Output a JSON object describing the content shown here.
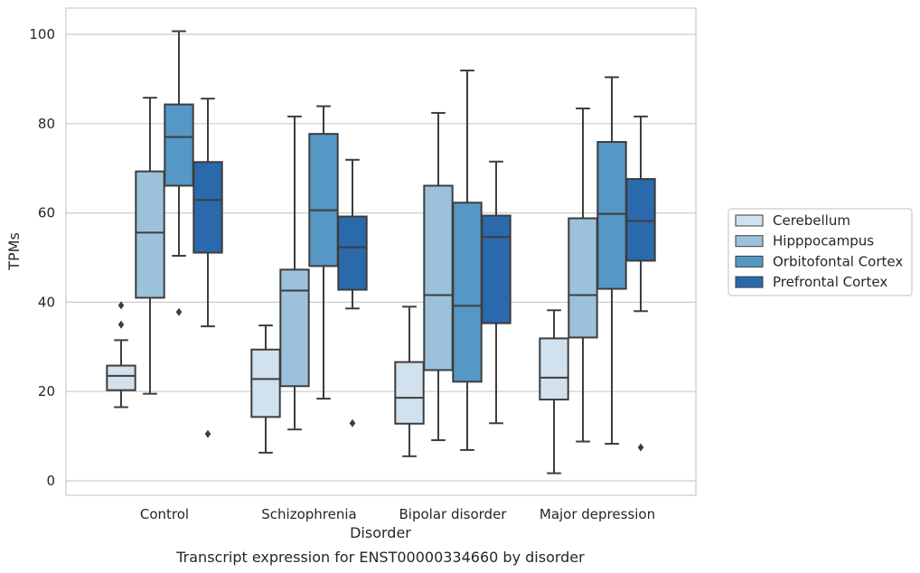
{
  "chart_data": {
    "type": "box",
    "title": "",
    "caption": "Transcript expression for ENST00000334660 by disorder",
    "xlabel": "Disorder",
    "ylabel": "TPMs",
    "ylim": [
      -3,
      106
    ],
    "yticks": [
      0,
      20,
      40,
      60,
      80,
      100
    ],
    "grid": "horizontal",
    "legend_position": "right",
    "categories": [
      "Control",
      "Schizophrenia",
      "Bipolar disorder",
      "Major depression"
    ],
    "series": [
      {
        "name": "Cerebellum",
        "color": "#d1e1ee",
        "boxes": [
          {
            "whisker_low": 16.5,
            "q1": 20.3,
            "median": 23.5,
            "q3": 25.8,
            "whisker_high": 31.5,
            "outliers": [
              35.0,
              39.3
            ]
          },
          {
            "whisker_low": 6.3,
            "q1": 14.3,
            "median": 22.8,
            "q3": 29.4,
            "whisker_high": 34.8,
            "outliers": []
          },
          {
            "whisker_low": 5.5,
            "q1": 12.8,
            "median": 18.6,
            "q3": 26.6,
            "whisker_high": 39.0,
            "outliers": []
          },
          {
            "whisker_low": 1.7,
            "q1": 18.2,
            "median": 23.1,
            "q3": 31.9,
            "whisker_high": 38.2,
            "outliers": []
          }
        ]
      },
      {
        "name": "Hipppocampus",
        "color": "#9cc2db",
        "boxes": [
          {
            "whisker_low": 19.5,
            "q1": 41.0,
            "median": 55.6,
            "q3": 69.3,
            "whisker_high": 85.8,
            "outliers": []
          },
          {
            "whisker_low": 11.5,
            "q1": 21.2,
            "median": 42.6,
            "q3": 47.3,
            "whisker_high": 81.6,
            "outliers": []
          },
          {
            "whisker_low": 9.1,
            "q1": 24.8,
            "median": 41.6,
            "q3": 66.1,
            "whisker_high": 82.4,
            "outliers": []
          },
          {
            "whisker_low": 8.8,
            "q1": 32.1,
            "median": 41.6,
            "q3": 58.8,
            "whisker_high": 83.4,
            "outliers": []
          }
        ]
      },
      {
        "name": "Orbitofontal Cortex",
        "color": "#5597c5",
        "boxes": [
          {
            "whisker_low": 50.4,
            "q1": 66.1,
            "median": 77.0,
            "q3": 84.3,
            "whisker_high": 100.7,
            "outliers": [
              37.8
            ]
          },
          {
            "whisker_low": 18.4,
            "q1": 48.1,
            "median": 60.6,
            "q3": 77.7,
            "whisker_high": 83.9,
            "outliers": []
          },
          {
            "whisker_low": 6.9,
            "q1": 22.2,
            "median": 39.2,
            "q3": 62.3,
            "whisker_high": 91.9,
            "outliers": []
          },
          {
            "whisker_low": 8.3,
            "q1": 43.0,
            "median": 59.8,
            "q3": 75.9,
            "whisker_high": 90.4,
            "outliers": []
          }
        ]
      },
      {
        "name": "Prefrontal Cortex",
        "color": "#2a69ac",
        "boxes": [
          {
            "whisker_low": 34.6,
            "q1": 51.1,
            "median": 62.9,
            "q3": 71.4,
            "whisker_high": 85.6,
            "outliers": [
              10.5
            ]
          },
          {
            "whisker_low": 38.6,
            "q1": 42.8,
            "median": 52.3,
            "q3": 59.2,
            "whisker_high": 71.9,
            "outliers": [
              12.9
            ]
          },
          {
            "whisker_low": 12.9,
            "q1": 35.3,
            "median": 54.6,
            "q3": 59.4,
            "whisker_high": 71.5,
            "outliers": []
          },
          {
            "whisker_low": 38.0,
            "q1": 49.3,
            "median": 58.2,
            "q3": 67.6,
            "whisker_high": 81.6,
            "outliers": [
              7.5
            ]
          }
        ]
      }
    ]
  },
  "colors": {
    "grid": "#cccccc",
    "frame": "#cccccc",
    "line": "#3d3d3d"
  }
}
